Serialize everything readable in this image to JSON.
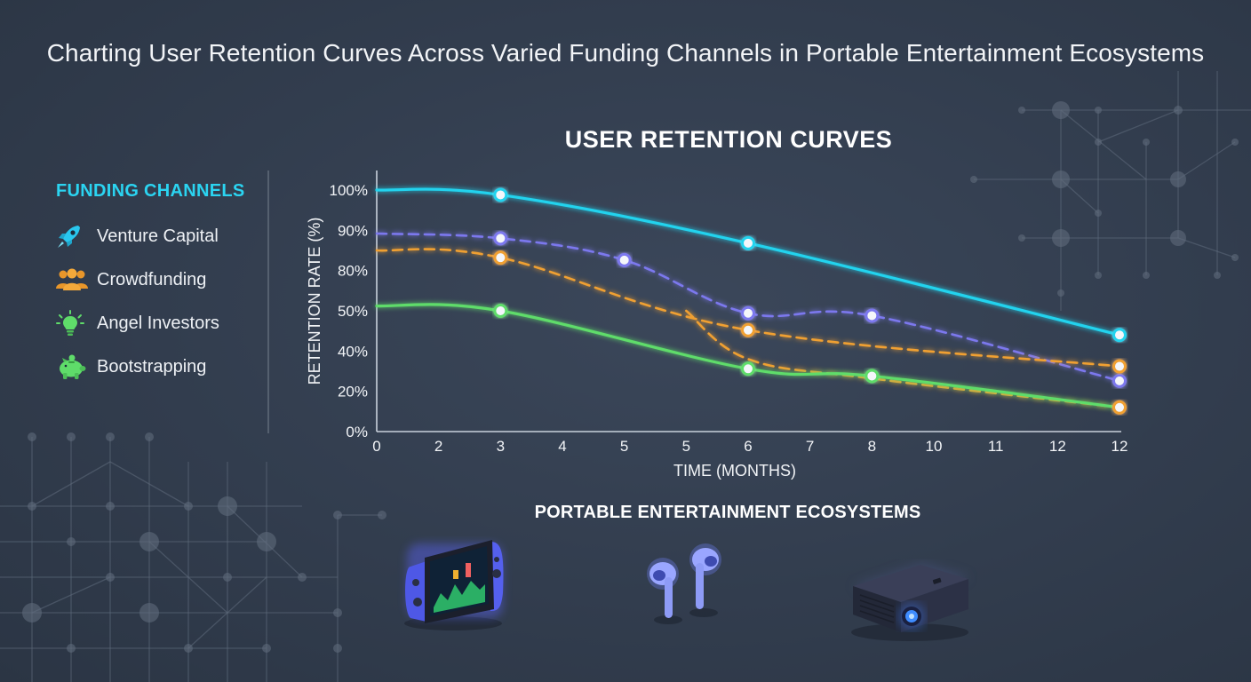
{
  "title": "Charting User Retention Curves Across Varied Funding Channels in Portable Entertainment Ecosystems",
  "legend": {
    "title": "FUNDING CHANNELS",
    "items": [
      {
        "label": "Venture Capital",
        "icon": "rocket-icon",
        "color": "#29c7ef"
      },
      {
        "label": "Crowdfunding",
        "icon": "people-group-icon",
        "color": "#f0a030"
      },
      {
        "label": "Angel Investors",
        "icon": "lightbulb-icon",
        "color": "#5fdc6a"
      },
      {
        "label": "Bootstrapping",
        "icon": "piggy-bank-icon",
        "color": "#5fdc6a"
      }
    ]
  },
  "chart_data": {
    "type": "line",
    "title": "USER RETENTION CURVES",
    "xlabel": "TIME (MONTHS)",
    "ylabel": "RETENTION RATE (%)",
    "x_tick_labels": [
      "0",
      "2",
      "3",
      "4",
      "5",
      "5",
      "6",
      "7",
      "8",
      "10",
      "11",
      "12",
      "12"
    ],
    "y_tick_labels": [
      "0%",
      "20%",
      "40%",
      "50%",
      "80%",
      "90%",
      "100%"
    ],
    "grid": false,
    "series": [
      {
        "color": "#22d3ee",
        "style": "solid",
        "points": [
          {
            "x": 0,
            "y": 100
          },
          {
            "x": 2,
            "y": 98
          },
          {
            "x": 6,
            "y": 78
          },
          {
            "x": 12,
            "y": 40
          }
        ],
        "markers": [
          1,
          2,
          3
        ]
      },
      {
        "color": "#7c78ee",
        "style": "dashed",
        "points": [
          {
            "x": 0,
            "y": 82
          },
          {
            "x": 2,
            "y": 80
          },
          {
            "x": 4,
            "y": 71
          },
          {
            "x": 6,
            "y": 49
          },
          {
            "x": 8,
            "y": 48
          },
          {
            "x": 12,
            "y": 21
          }
        ],
        "markers": [
          1,
          2,
          3,
          4,
          5
        ]
      },
      {
        "color": "#f0a030",
        "style": "dashed",
        "points": [
          {
            "x": 0,
            "y": 75
          },
          {
            "x": 2,
            "y": 72
          },
          {
            "x": 6,
            "y": 42
          },
          {
            "x": 12,
            "y": 27
          }
        ],
        "markers": [
          1,
          2,
          3
        ]
      },
      {
        "color": "#f0a030",
        "style": "dashed",
        "points": [
          {
            "x": 5,
            "y": 50
          },
          {
            "x": 6,
            "y": 30
          },
          {
            "x": 8,
            "y": 22
          },
          {
            "x": 12,
            "y": 10
          }
        ],
        "markers": [
          3
        ]
      },
      {
        "color": "#5fdc6a",
        "style": "solid",
        "points": [
          {
            "x": 0,
            "y": 52
          },
          {
            "x": 2,
            "y": 50
          },
          {
            "x": 6,
            "y": 26
          },
          {
            "x": 8,
            "y": 23
          },
          {
            "x": 12,
            "y": 10
          }
        ],
        "markers": [
          1,
          2,
          3
        ]
      }
    ]
  },
  "ecosystem": {
    "title": "PORTABLE ENTERTAINMENT ECOSYSTEMS",
    "devices": [
      "handheld-console-icon",
      "wireless-earbuds-icon",
      "portable-projector-icon"
    ]
  }
}
